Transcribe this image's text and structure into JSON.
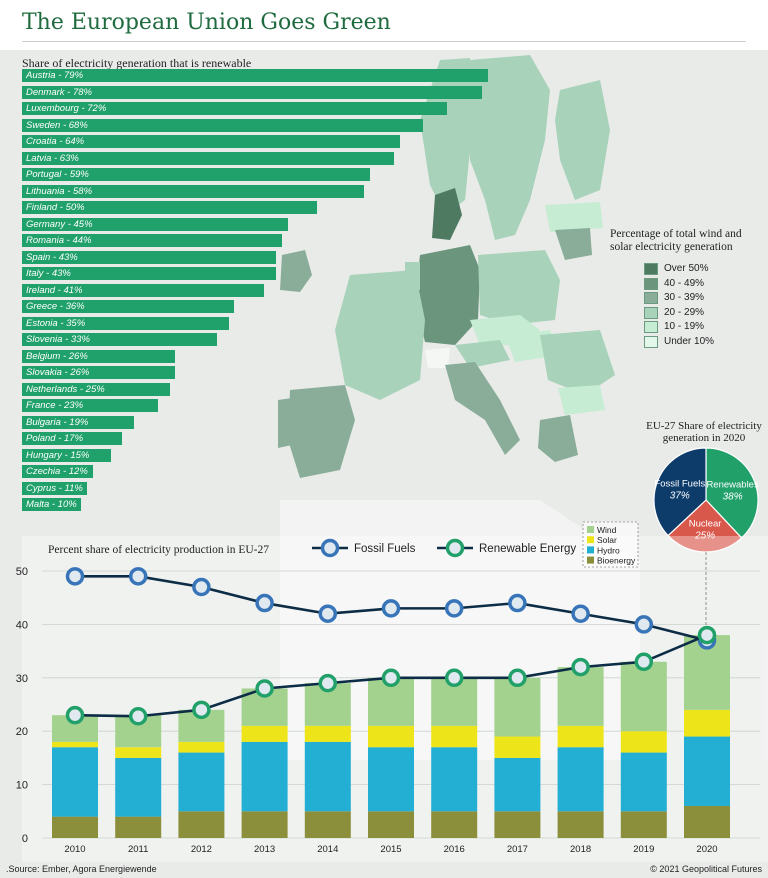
{
  "title": "The European Union Goes Green",
  "renewable_share": {
    "subtitle": "Share of electricity generation that is renewable",
    "max_percent": 100,
    "countries": [
      {
        "label": "Austria - 79%",
        "value": 79
      },
      {
        "label": "Denmark - 78%",
        "value": 78
      },
      {
        "label": "Luxembourg - 72%",
        "value": 72
      },
      {
        "label": "Sweden - 68%",
        "value": 68
      },
      {
        "label": "Croatia - 64%",
        "value": 64
      },
      {
        "label": "Latvia - 63%",
        "value": 63
      },
      {
        "label": "Portugal - 59%",
        "value": 59
      },
      {
        "label": "Lithuania - 58%",
        "value": 58
      },
      {
        "label": "Finland - 50%",
        "value": 50
      },
      {
        "label": "Germany - 45%",
        "value": 45
      },
      {
        "label": "Romania - 44%",
        "value": 44
      },
      {
        "label": "Spain - 43%",
        "value": 43
      },
      {
        "label": "Italy - 43%",
        "value": 43
      },
      {
        "label": "Ireland - 41%",
        "value": 41
      },
      {
        "label": "Greece - 36%",
        "value": 36
      },
      {
        "label": "Estonia - 35%",
        "value": 35
      },
      {
        "label": "Slovenia - 33%",
        "value": 33
      },
      {
        "label": "Belgium - 26%",
        "value": 26
      },
      {
        "label": "Slovakia - 26%",
        "value": 26
      },
      {
        "label": "Netherlands - 25%",
        "value": 25
      },
      {
        "label": "France - 23%",
        "value": 23
      },
      {
        "label": "Bulgaria - 19%",
        "value": 19
      },
      {
        "label": "Poland - 17%",
        "value": 17
      },
      {
        "label": "Hungary - 15%",
        "value": 15
      },
      {
        "label": "Czechia - 12%",
        "value": 12
      },
      {
        "label": "Cyprus - 11%",
        "value": 11
      },
      {
        "label": "Malta - 10%",
        "value": 10
      }
    ]
  },
  "map_legend": {
    "title": "Percentage of total wind and solar electricity generation",
    "items": [
      {
        "label": "Over 50%",
        "color": "#4e7a62"
      },
      {
        "label": "40 - 49%",
        "color": "#6c957d"
      },
      {
        "label": "30 - 39%",
        "color": "#89ad98"
      },
      {
        "label": "20 - 29%",
        "color": "#a8d2b9"
      },
      {
        "label": "10 - 19%",
        "color": "#c6ecd4"
      },
      {
        "label": "Under 10%",
        "color": "#e3f7ea"
      }
    ]
  },
  "pie": {
    "title": "EU-27 Share of electricity generation in 2020",
    "slices": [
      {
        "name": "Renewables",
        "value": 38,
        "label": "38%",
        "color": "#21a06a"
      },
      {
        "name": "Nuclear",
        "value": 25,
        "label": "25%",
        "color": "#d9584c"
      },
      {
        "name": "Fossil Fuels",
        "value": 37,
        "label": "37%",
        "color": "#0d3c6b"
      }
    ]
  },
  "chart_data": {
    "type": "bar",
    "title": "Percent share of electricity production in EU-27",
    "categories": [
      "2010",
      "2011",
      "2012",
      "2013",
      "2014",
      "2015",
      "2016",
      "2017",
      "2018",
      "2019",
      "2020"
    ],
    "stacked": true,
    "ylim": [
      0,
      50
    ],
    "yticks": [
      0,
      10,
      20,
      30,
      40,
      50
    ],
    "series": [
      {
        "name": "Bioenergy",
        "color": "#8b8f3b",
        "values": [
          4,
          4,
          5,
          5,
          5,
          5,
          5,
          5,
          5,
          5,
          6
        ]
      },
      {
        "name": "Hydro",
        "color": "#23aed4",
        "values": [
          13,
          11,
          11,
          13,
          13,
          12,
          12,
          10,
          12,
          11,
          13
        ]
      },
      {
        "name": "Solar",
        "color": "#eee41a",
        "values": [
          1,
          2,
          2,
          3,
          3,
          4,
          4,
          4,
          4,
          4,
          5
        ]
      },
      {
        "name": "Wind",
        "color": "#a3d18e",
        "values": [
          5,
          6,
          6,
          7,
          8,
          9,
          9,
          11,
          11,
          13,
          14
        ]
      }
    ],
    "lines": [
      {
        "name": "Fossil Fuels",
        "color": "#0d2c46",
        "marker": "#3874b8",
        "values": [
          49,
          49,
          47,
          44,
          42,
          43,
          43,
          44,
          42,
          40,
          37
        ]
      },
      {
        "name": "Renewable Energy",
        "color": "#0d2c46",
        "marker": "#21a06a",
        "values": [
          23,
          22.8,
          24,
          28,
          29,
          30,
          30,
          30,
          32,
          33,
          38
        ]
      }
    ]
  },
  "footer": {
    "source": ".Source: Ember, Agora Energiewende",
    "credit": "© 2021 Geopolitical Futures"
  }
}
